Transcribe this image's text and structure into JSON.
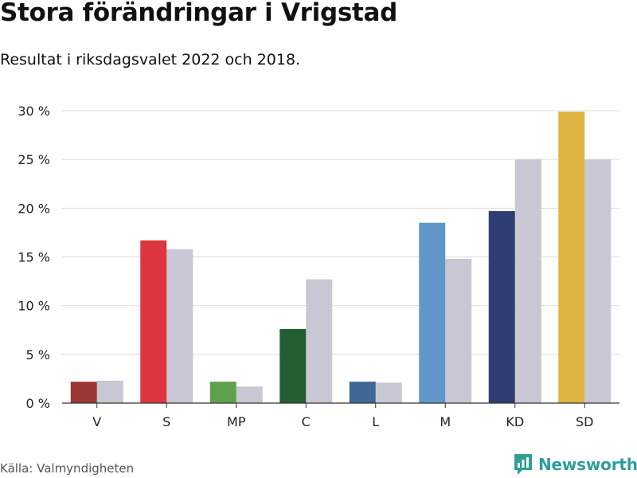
{
  "header": {
    "title": "Stora förändringar i Vrigstad",
    "subtitle": "Resultat i riksdagsvalet 2022 och 2018."
  },
  "footer": {
    "source": "Källa: Valmyndigheten",
    "brand": "Newsworthy"
  },
  "colors": {
    "previous": "#c8c7d3",
    "grid": "#dddddd",
    "brand": "#2f9e97"
  },
  "chart_data": {
    "type": "bar",
    "title": "Stora förändringar i Vrigstad",
    "xlabel": "",
    "ylabel": "",
    "ylim": [
      0,
      30
    ],
    "yticks": [
      0,
      5,
      10,
      15,
      20,
      25,
      30
    ],
    "ytick_labels": [
      "0 %",
      "5 %",
      "10 %",
      "15 %",
      "20 %",
      "25 %",
      "30 %"
    ],
    "categories": [
      "V",
      "S",
      "MP",
      "C",
      "L",
      "M",
      "KD",
      "SD"
    ],
    "category_colors": [
      "#9b3a35",
      "#dd363e",
      "#5ea04b",
      "#235e33",
      "#3f6896",
      "#6197c8",
      "#2f3d72",
      "#deb443"
    ],
    "grid": true,
    "series": [
      {
        "name": "2022",
        "values": [
          2.2,
          16.7,
          2.2,
          7.6,
          2.2,
          18.5,
          19.7,
          29.9
        ]
      },
      {
        "name": "2018",
        "values": [
          2.3,
          15.8,
          1.7,
          12.7,
          2.1,
          14.8,
          25.0,
          25.0
        ]
      }
    ]
  }
}
